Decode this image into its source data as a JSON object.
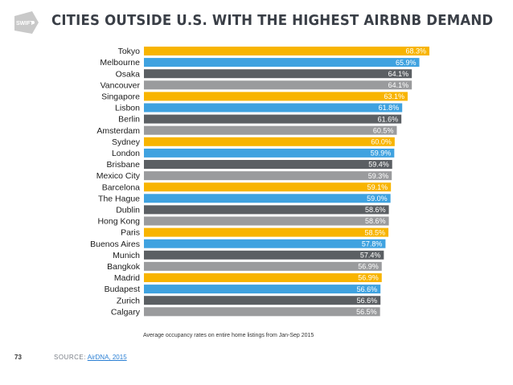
{
  "page": {
    "title": "CITIES OUTSIDE U.S. WITH THE HIGHEST AIRBNB DEMAND",
    "logo_text": "SWIFT",
    "page_number": "73",
    "source_label": "SOURCE:",
    "source_link": "AirDNA, 2015"
  },
  "colors": {
    "gold": "#F8B400",
    "blue": "#3FA2E0",
    "dark": "#5B5F63",
    "grey": "#9A9B9D",
    "logo": "#C9C9C9"
  },
  "chart_data": {
    "type": "bar",
    "orientation": "horizontal",
    "title": "",
    "xlabel": "Average occupancy rates on entire home listings from Jan-Sep 2015",
    "ylabel": "",
    "xlim": [
      0,
      68.3
    ],
    "grid": false,
    "categories": [
      "Tokyo",
      "Melbourne",
      "Osaka",
      "Vancouver",
      "Singapore",
      "Lisbon",
      "Berlin",
      "Amsterdam",
      "Sydney",
      "London",
      "Brisbane",
      "Mexico City",
      "Barcelona",
      "The Hague",
      "Dublin",
      "Hong Kong",
      "Paris",
      "Buenos Aires",
      "Munich",
      "Bangkok",
      "Madrid",
      "Budapest",
      "Zurich",
      "Calgary"
    ],
    "values": [
      68.3,
      65.9,
      64.1,
      64.1,
      63.1,
      61.8,
      61.6,
      60.5,
      60.0,
      59.9,
      59.4,
      59.3,
      59.1,
      59.0,
      58.6,
      58.6,
      58.5,
      57.8,
      57.4,
      56.9,
      56.9,
      56.6,
      56.6,
      56.5
    ],
    "labels": [
      "68.3%",
      "65.9%",
      "64.1%",
      "64.1%",
      "63.1%",
      "61.8%",
      "61.6%",
      "60.5%",
      "60.0%",
      "59.9%",
      "59.4%",
      "59.3%",
      "59.1%",
      "59.0%",
      "58.6%",
      "58.6%",
      "58.5%",
      "57.8%",
      "57.4%",
      "56.9%",
      "56.9%",
      "56.6%",
      "56.6%",
      "56.5%"
    ],
    "bar_colors": [
      "gold",
      "blue",
      "dark",
      "grey",
      "gold",
      "blue",
      "dark",
      "grey",
      "gold",
      "blue",
      "dark",
      "grey",
      "gold",
      "blue",
      "dark",
      "grey",
      "gold",
      "blue",
      "dark",
      "grey",
      "gold",
      "blue",
      "dark",
      "grey"
    ]
  }
}
